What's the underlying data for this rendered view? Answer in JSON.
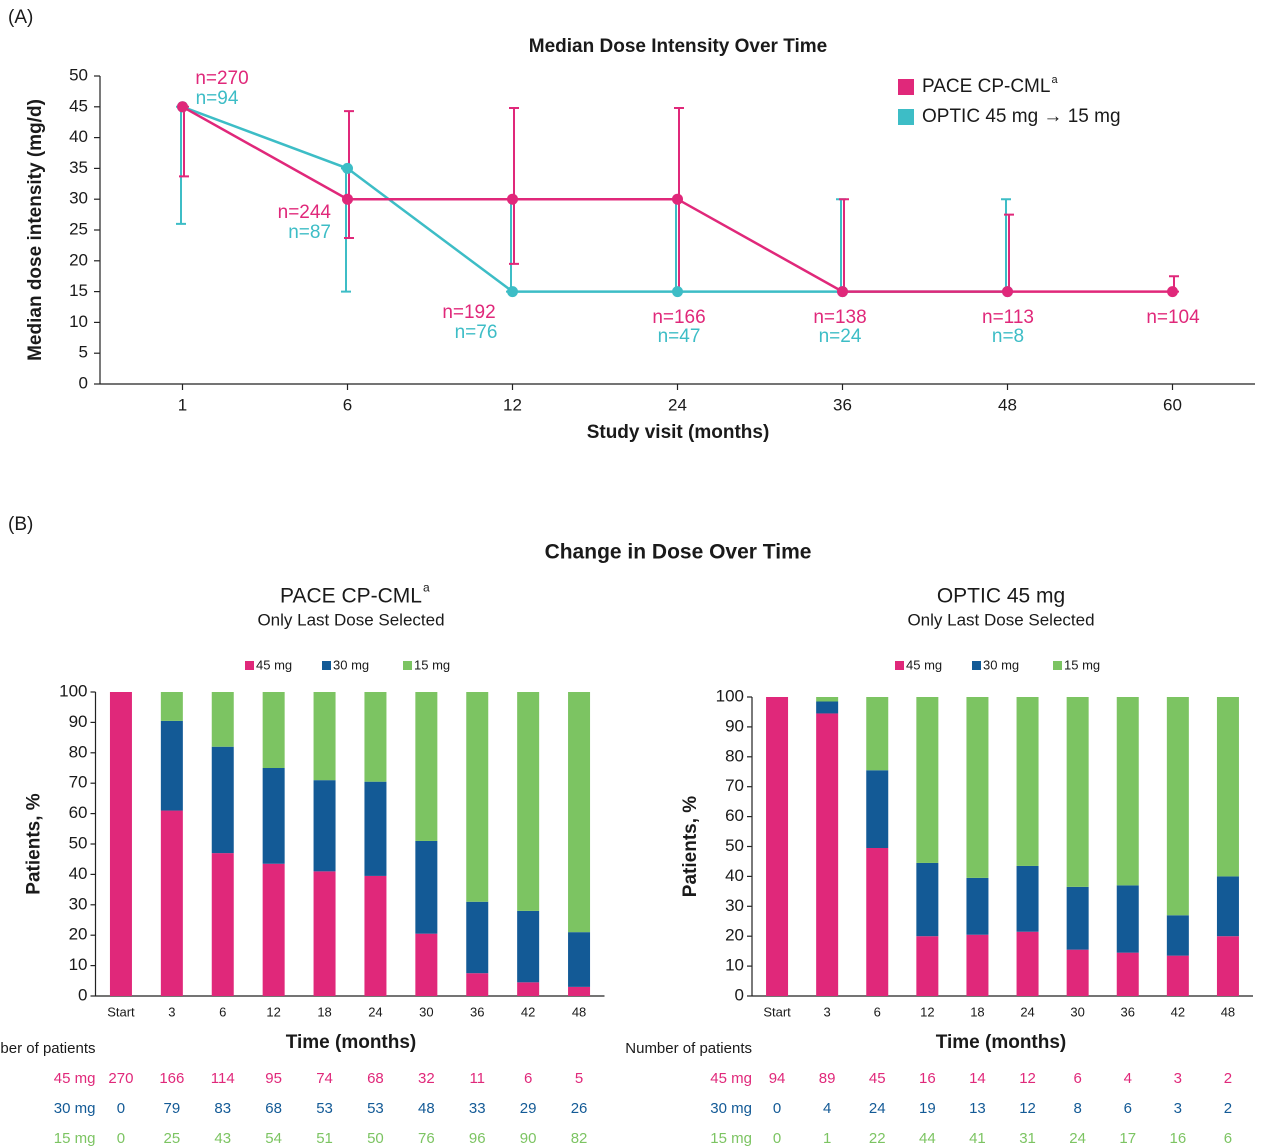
{
  "chart_data": [
    {
      "type": "line",
      "panel_label": "(A)",
      "title": "Median Dose Intensity Over Time",
      "x_label": "Study visit (months)",
      "y_label": "Median dose intensity (mg/d)",
      "categories": [
        "1",
        "6",
        "12",
        "24",
        "36",
        "48",
        "60"
      ],
      "ylim": [
        0,
        50
      ],
      "yticks": [
        0,
        5,
        10,
        15,
        20,
        25,
        30,
        35,
        40,
        45,
        50
      ],
      "series": [
        {
          "name": "PACE CP-CML",
          "name_note": "a",
          "color": "#e0287a",
          "values": [
            45,
            30,
            30,
            30,
            15,
            15,
            15
          ],
          "lower": [
            33.7,
            23.7,
            19.5,
            15,
            15,
            15,
            15
          ],
          "upper": [
            45,
            44.3,
            44.8,
            44.8,
            30,
            27.5,
            17.5
          ],
          "n_labels": [
            "n=270",
            "n=244",
            "n=192",
            "n=166",
            "n=138",
            "n=113",
            "n=104"
          ]
        },
        {
          "name": "OPTIC 45 mg → 15 mg",
          "color": "#3dbdc6",
          "values": [
            45,
            35,
            15,
            15,
            15,
            15,
            null
          ],
          "lower": [
            26,
            15,
            15,
            15,
            15,
            15,
            null
          ],
          "upper": [
            45,
            35,
            30,
            30,
            30,
            30,
            null
          ],
          "n_labels": [
            "n=94",
            "n=87",
            "n=76",
            "n=47",
            "n=24",
            "n=8",
            null
          ]
        }
      ]
    },
    {
      "type": "stacked_bar",
      "panel_label": "(B)",
      "panel_title": "Change in Dose Over Time",
      "title": "PACE CP-CML",
      "title_note": "a",
      "subtitle": "Only Last Dose Selected",
      "x_label": "Time (months)",
      "y_label": "Patients, %",
      "n_label": "Number of patients",
      "categories": [
        "Start",
        "3",
        "6",
        "12",
        "18",
        "24",
        "30",
        "36",
        "42",
        "48"
      ],
      "ylim": [
        0,
        100
      ],
      "yticks": [
        0,
        10,
        20,
        30,
        40,
        50,
        60,
        70,
        80,
        90,
        100
      ],
      "series": [
        {
          "name": "45 mg",
          "color": "#e0287a",
          "values": [
            100,
            61,
            47,
            43.5,
            41,
            39.5,
            20.5,
            7.5,
            4.5,
            3
          ],
          "n": [
            270,
            166,
            114,
            95,
            74,
            68,
            32,
            11,
            6,
            5
          ]
        },
        {
          "name": "30 mg",
          "color": "#135a96",
          "values": [
            0,
            29.5,
            35,
            31.5,
            30,
            31,
            30.5,
            23.5,
            23.5,
            18
          ],
          "n": [
            0,
            79,
            83,
            68,
            53,
            53,
            48,
            33,
            29,
            26
          ]
        },
        {
          "name": "15 mg",
          "color": "#7cc462",
          "values": [
            0,
            9.5,
            18,
            25,
            29,
            29.5,
            49,
            69,
            72,
            79
          ],
          "n": [
            0,
            25,
            43,
            54,
            51,
            50,
            76,
            96,
            90,
            82
          ]
        }
      ]
    },
    {
      "type": "stacked_bar",
      "title": "OPTIC 45 mg",
      "subtitle": "Only Last Dose Selected",
      "x_label": "Time (months)",
      "y_label": "Patients, %",
      "n_label": "Number of patients",
      "categories": [
        "Start",
        "3",
        "6",
        "12",
        "18",
        "24",
        "30",
        "36",
        "42",
        "48"
      ],
      "ylim": [
        0,
        100
      ],
      "yticks": [
        0,
        10,
        20,
        30,
        40,
        50,
        60,
        70,
        80,
        90,
        100
      ],
      "series": [
        {
          "name": "45 mg",
          "color": "#e0287a",
          "values": [
            100,
            94.5,
            49.5,
            20,
            20.5,
            21.5,
            15.5,
            14.5,
            13.5,
            20
          ],
          "n": [
            94,
            89,
            45,
            16,
            14,
            12,
            6,
            4,
            3,
            2
          ]
        },
        {
          "name": "30 mg",
          "color": "#135a96",
          "values": [
            0,
            4,
            26,
            24.5,
            19,
            22,
            21,
            22.5,
            13.5,
            20
          ],
          "n": [
            0,
            4,
            24,
            19,
            13,
            12,
            8,
            6,
            3,
            2
          ]
        },
        {
          "name": "15 mg",
          "color": "#7cc462",
          "values": [
            0,
            1.5,
            24.5,
            55.5,
            60.5,
            56.5,
            63.5,
            63,
            73,
            60
          ],
          "n": [
            0,
            1,
            22,
            44,
            41,
            31,
            24,
            17,
            16,
            6
          ]
        }
      ]
    }
  ]
}
